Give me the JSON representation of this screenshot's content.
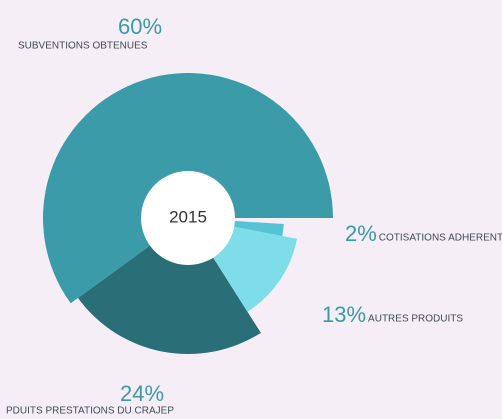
{
  "chart_data": {
    "type": "pie",
    "center_label": "2015",
    "categories": [
      "SUBVENTIONS OBTENUES",
      "PDUITS PRESTATIONS DU CRAJEP",
      "AUTRES PRODUITS",
      "COTISATIONS ADHERENTS"
    ],
    "values": [
      60,
      24,
      13,
      2
    ],
    "value_labels": [
      "60%",
      "24%",
      "13%",
      "2%"
    ],
    "colors": [
      "#3b9ba9",
      "#2a6e78",
      "#7fdde9",
      "#56c3d4"
    ]
  }
}
